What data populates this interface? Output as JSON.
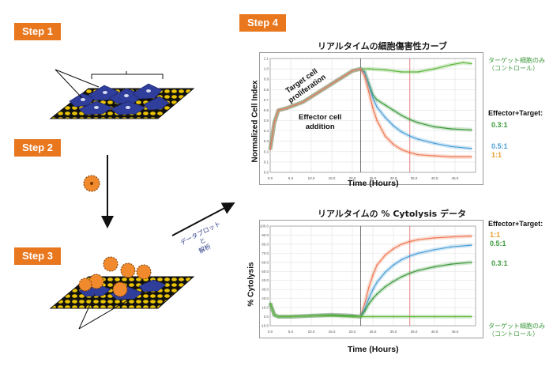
{
  "steps": {
    "step1": "Step 1",
    "step2": "Step 2",
    "step3": "Step 3",
    "step4": "Step 4"
  },
  "arrow_note": {
    "line1": "データプロット",
    "line2": "と",
    "line3": "解析"
  },
  "colors": {
    "step_badge": "#e8771e",
    "target_cell": "#2f3d9b",
    "effector_cell": "#f08a2c",
    "grid_dot": "#e9c200",
    "series_0_3": "#3d9a3d",
    "series_0_5": "#4a9fd8",
    "series_1": "#f07a55",
    "control": "#5fb83e"
  },
  "chart_data": [
    {
      "type": "line",
      "title": "リアルタイムの細胞傷害性カーブ",
      "xlabel": "Time (Hours)",
      "ylabel": "Normalized Cell Index",
      "xlim": [
        0,
        50
      ],
      "ylim": [
        0,
        1.1
      ],
      "x_ticks": [
        "0.0",
        "5.0",
        "10.0",
        "15.0",
        "20.0",
        "25.0",
        "30.0",
        "35.0",
        "40.0",
        "45.0"
      ],
      "y_ticks": [
        "0.0",
        "0.1",
        "0.2",
        "0.3",
        "0.4",
        "0.5",
        "0.6",
        "0.7",
        "0.8",
        "0.9",
        "1.0",
        "1.1"
      ],
      "annotations": {
        "proliferation": [
          "Target cell",
          "proliferation"
        ],
        "addition": [
          "Effector cell",
          "addition"
        ]
      },
      "legend_title": "Effector+Target:",
      "series": [
        {
          "name": "ターゲット細胞のみ（コントロール）",
          "line1": "ターゲット細胞のみ",
          "line2": "（コントロール）",
          "x": [
            0,
            1,
            2,
            4,
            8,
            12,
            16,
            20,
            22,
            24,
            28,
            32,
            36,
            40,
            44,
            47,
            49
          ],
          "y": [
            0.22,
            0.48,
            0.6,
            0.62,
            0.68,
            0.78,
            0.88,
            0.98,
            1.0,
            1.0,
            0.99,
            0.97,
            0.97,
            1.0,
            1.04,
            1.06,
            1.05
          ]
        },
        {
          "name": "0.3:1",
          "x": [
            0,
            1,
            2,
            4,
            8,
            12,
            16,
            20,
            22,
            23,
            24,
            25,
            26,
            28,
            30,
            32,
            34,
            36,
            40,
            44,
            49
          ],
          "y": [
            0.22,
            0.48,
            0.6,
            0.62,
            0.68,
            0.78,
            0.88,
            0.98,
            1.0,
            0.97,
            0.86,
            0.75,
            0.7,
            0.65,
            0.6,
            0.55,
            0.51,
            0.48,
            0.44,
            0.42,
            0.41
          ]
        },
        {
          "name": "0.5:1",
          "x": [
            0,
            1,
            2,
            4,
            8,
            12,
            16,
            20,
            22,
            23,
            24,
            25,
            26,
            28,
            30,
            32,
            34,
            36,
            40,
            44,
            49
          ],
          "y": [
            0.22,
            0.48,
            0.6,
            0.62,
            0.68,
            0.78,
            0.88,
            0.98,
            1.0,
            0.96,
            0.84,
            0.72,
            0.63,
            0.53,
            0.45,
            0.39,
            0.35,
            0.32,
            0.28,
            0.25,
            0.23
          ]
        },
        {
          "name": "1:1",
          "x": [
            0,
            1,
            2,
            4,
            8,
            12,
            16,
            20,
            22,
            23,
            24,
            25,
            26,
            28,
            30,
            32,
            34,
            36,
            40,
            44,
            49
          ],
          "y": [
            0.22,
            0.48,
            0.6,
            0.62,
            0.68,
            0.78,
            0.88,
            0.98,
            1.0,
            0.93,
            0.78,
            0.62,
            0.5,
            0.35,
            0.27,
            0.22,
            0.19,
            0.17,
            0.16,
            0.15,
            0.15
          ]
        }
      ]
    },
    {
      "type": "line",
      "title": "リアルタイムの % Cytolysis データ",
      "xlabel": "Time (Hours)",
      "ylabel": "% Cytolysis",
      "xlim": [
        0,
        50
      ],
      "ylim": [
        -10,
        100
      ],
      "x_ticks": [
        "0.0",
        "5.0",
        "10.0",
        "15.0",
        "20.0",
        "25.0",
        "30.0",
        "35.0",
        "40.0",
        "45.0"
      ],
      "y_ticks": [
        "-10.0",
        "0.0",
        "10.0",
        "20.0",
        "30.0",
        "40.0",
        "50.0",
        "60.0",
        "70.0",
        "80.0",
        "90.0",
        "100.0"
      ],
      "legend_title": "Effector+Target:",
      "series": [
        {
          "name": "1:1",
          "x": [
            0,
            1,
            2,
            5,
            10,
            15,
            20,
            22,
            23,
            24,
            25,
            26,
            28,
            30,
            32,
            34,
            36,
            40,
            44,
            49
          ],
          "y": [
            15,
            2,
            0,
            0,
            1,
            2,
            1,
            0,
            14,
            32,
            46,
            57,
            68,
            75,
            80,
            83,
            85,
            87,
            88,
            89
          ]
        },
        {
          "name": "0.5:1",
          "x": [
            0,
            1,
            2,
            5,
            10,
            15,
            20,
            22,
            23,
            24,
            25,
            26,
            28,
            30,
            32,
            34,
            36,
            40,
            44,
            49
          ],
          "y": [
            15,
            2,
            0,
            0,
            1,
            2,
            1,
            0,
            8,
            20,
            30,
            38,
            49,
            57,
            63,
            67,
            70,
            74,
            77,
            79
          ]
        },
        {
          "name": "0.3:1",
          "x": [
            0,
            1,
            2,
            5,
            10,
            15,
            20,
            22,
            23,
            24,
            25,
            26,
            28,
            30,
            32,
            34,
            36,
            40,
            44,
            49
          ],
          "y": [
            15,
            2,
            0,
            0,
            1,
            2,
            1,
            0,
            6,
            14,
            20,
            25,
            33,
            39,
            44,
            48,
            51,
            55,
            58,
            60
          ]
        },
        {
          "name": "ターゲット細胞のみ（コントロール）",
          "line1": "ターゲット細胞のみ",
          "line2": "（コントロール）",
          "x": [
            0,
            1,
            2,
            5,
            10,
            15,
            20,
            22,
            25,
            30,
            35,
            40,
            45,
            49
          ],
          "y": [
            15,
            2,
            0,
            0,
            1,
            1,
            0,
            0,
            0,
            0,
            0,
            0,
            0,
            0
          ]
        }
      ]
    }
  ]
}
